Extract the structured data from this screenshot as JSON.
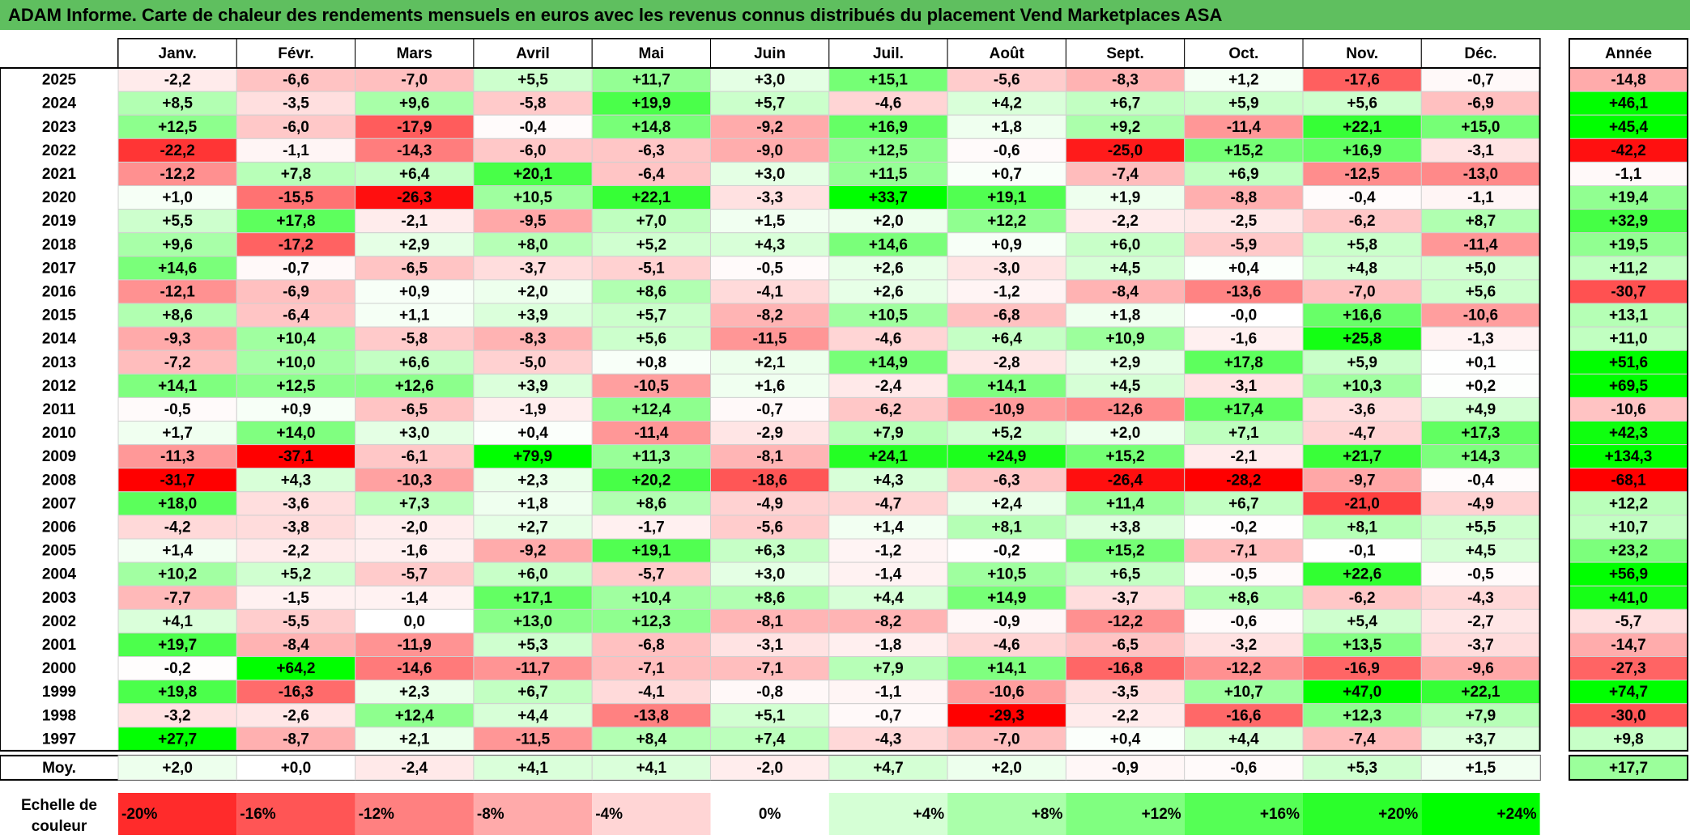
{
  "title": "ADAM Informe. Carte de chaleur des rendements mensuels en euros avec les revenus connus distribués du placement Vend Marketplaces ASA",
  "colors": {
    "title_bg": "#5fbf5f",
    "negative_max": "#ff0000",
    "neutral": "#ffffff",
    "positive_max": "#00ff00"
  },
  "chart_data": {
    "type": "heatmap",
    "columns": [
      "Janv.",
      "Févr.",
      "Mars",
      "Avril",
      "Mai",
      "Juin",
      "Juil.",
      "Août",
      "Sept.",
      "Oct.",
      "Nov.",
      "Déc."
    ],
    "annual_header": "Année",
    "rows": [
      {
        "year": "2025",
        "values": [
          "-2,2",
          "-6,6",
          "-7,0",
          "+5,5",
          "+11,7",
          "+3,0",
          "+15,1",
          "-5,6",
          "-8,3",
          "+1,2",
          "-17,6",
          "-0,7"
        ],
        "annual": "-14,8"
      },
      {
        "year": "2024",
        "values": [
          "+8,5",
          "-3,5",
          "+9,6",
          "-5,8",
          "+19,9",
          "+5,7",
          "-4,6",
          "+4,2",
          "+6,7",
          "+5,9",
          "+5,6",
          "-6,9"
        ],
        "annual": "+46,1"
      },
      {
        "year": "2023",
        "values": [
          "+12,5",
          "-6,0",
          "-17,9",
          "-0,4",
          "+14,8",
          "-9,2",
          "+16,9",
          "+1,8",
          "+9,2",
          "-11,4",
          "+22,1",
          "+15,0"
        ],
        "annual": "+45,4"
      },
      {
        "year": "2022",
        "values": [
          "-22,2",
          "-1,1",
          "-14,3",
          "-6,0",
          "-6,3",
          "-9,0",
          "+12,5",
          "-0,6",
          "-25,0",
          "+15,2",
          "+16,9",
          "-3,1"
        ],
        "annual": "-42,2"
      },
      {
        "year": "2021",
        "values": [
          "-12,2",
          "+7,8",
          "+6,4",
          "+20,1",
          "-6,4",
          "+3,0",
          "+11,5",
          "+0,7",
          "-7,4",
          "+6,9",
          "-12,5",
          "-13,0"
        ],
        "annual": "-1,1"
      },
      {
        "year": "2020",
        "values": [
          "+1,0",
          "-15,5",
          "-26,3",
          "+10,5",
          "+22,1",
          "-3,3",
          "+33,7",
          "+19,1",
          "+1,9",
          "-8,8",
          "-0,4",
          "-1,1"
        ],
        "annual": "+19,4"
      },
      {
        "year": "2019",
        "values": [
          "+5,5",
          "+17,8",
          "-2,1",
          "-9,5",
          "+7,0",
          "+1,5",
          "+2,0",
          "+12,2",
          "-2,2",
          "-2,5",
          "-6,2",
          "+8,7"
        ],
        "annual": "+32,9"
      },
      {
        "year": "2018",
        "values": [
          "+9,6",
          "-17,2",
          "+2,9",
          "+8,0",
          "+5,2",
          "+4,3",
          "+14,6",
          "+0,9",
          "+6,0",
          "-5,9",
          "+5,8",
          "-11,4"
        ],
        "annual": "+19,5"
      },
      {
        "year": "2017",
        "values": [
          "+14,6",
          "-0,7",
          "-6,5",
          "-3,7",
          "-5,1",
          "-0,5",
          "+2,6",
          "-3,0",
          "+4,5",
          "+0,4",
          "+4,8",
          "+5,0"
        ],
        "annual": "+11,2"
      },
      {
        "year": "2016",
        "values": [
          "-12,1",
          "-6,9",
          "+0,9",
          "+2,0",
          "+8,6",
          "-4,1",
          "+2,6",
          "-1,2",
          "-8,4",
          "-13,6",
          "-7,0",
          "+5,6"
        ],
        "annual": "-30,7"
      },
      {
        "year": "2015",
        "values": [
          "+8,6",
          "-6,4",
          "+1,1",
          "+3,9",
          "+5,7",
          "-8,2",
          "+10,5",
          "-6,8",
          "+1,8",
          "-0,0",
          "+16,6",
          "-10,6"
        ],
        "annual": "+13,1"
      },
      {
        "year": "2014",
        "values": [
          "-9,3",
          "+10,4",
          "-5,8",
          "-8,3",
          "+5,6",
          "-11,5",
          "-4,6",
          "+6,4",
          "+10,9",
          "-1,6",
          "+25,8",
          "-1,3"
        ],
        "annual": "+11,0"
      },
      {
        "year": "2013",
        "values": [
          "-7,2",
          "+10,0",
          "+6,6",
          "-5,0",
          "+0,8",
          "+2,1",
          "+14,9",
          "-2,8",
          "+2,9",
          "+17,8",
          "+5,9",
          "+0,1"
        ],
        "annual": "+51,6"
      },
      {
        "year": "2012",
        "values": [
          "+14,1",
          "+12,5",
          "+12,6",
          "+3,9",
          "-10,5",
          "+1,6",
          "-2,4",
          "+14,1",
          "+4,5",
          "-3,1",
          "+10,3",
          "+0,2"
        ],
        "annual": "+69,5"
      },
      {
        "year": "2011",
        "values": [
          "-0,5",
          "+0,9",
          "-6,5",
          "-1,9",
          "+12,4",
          "-0,7",
          "-6,2",
          "-10,9",
          "-12,6",
          "+17,4",
          "-3,6",
          "+4,9"
        ],
        "annual": "-10,6"
      },
      {
        "year": "2010",
        "values": [
          "+1,7",
          "+14,0",
          "+3,0",
          "+0,4",
          "-11,4",
          "-2,9",
          "+7,9",
          "+5,2",
          "+2,0",
          "+7,1",
          "-4,7",
          "+17,3"
        ],
        "annual": "+42,3"
      },
      {
        "year": "2009",
        "values": [
          "-11,3",
          "-37,1",
          "-6,1",
          "+79,9",
          "+11,3",
          "-8,1",
          "+24,1",
          "+24,9",
          "+15,2",
          "-2,1",
          "+21,7",
          "+14,3"
        ],
        "annual": "+134,3"
      },
      {
        "year": "2008",
        "values": [
          "-31,7",
          "+4,3",
          "-10,3",
          "+2,3",
          "+20,2",
          "-18,6",
          "+4,3",
          "-6,3",
          "-26,4",
          "-28,2",
          "-9,7",
          "-0,4"
        ],
        "annual": "-68,1"
      },
      {
        "year": "2007",
        "values": [
          "+18,0",
          "-3,6",
          "+7,3",
          "+1,8",
          "+8,6",
          "-4,9",
          "-4,7",
          "+2,4",
          "+11,4",
          "+6,7",
          "-21,0",
          "-4,9"
        ],
        "annual": "+12,2"
      },
      {
        "year": "2006",
        "values": [
          "-4,2",
          "-3,8",
          "-2,0",
          "+2,7",
          "-1,7",
          "-5,6",
          "+1,4",
          "+8,1",
          "+3,8",
          "-0,2",
          "+8,1",
          "+5,5"
        ],
        "annual": "+10,7"
      },
      {
        "year": "2005",
        "values": [
          "+1,4",
          "-2,2",
          "-1,6",
          "-9,2",
          "+19,1",
          "+6,3",
          "-1,2",
          "-0,2",
          "+15,2",
          "-7,1",
          "-0,1",
          "+4,5"
        ],
        "annual": "+23,2"
      },
      {
        "year": "2004",
        "values": [
          "+10,2",
          "+5,2",
          "-5,7",
          "+6,0",
          "-5,7",
          "+3,0",
          "-1,4",
          "+10,5",
          "+6,5",
          "-0,5",
          "+22,6",
          "-0,5"
        ],
        "annual": "+56,9"
      },
      {
        "year": "2003",
        "values": [
          "-7,7",
          "-1,5",
          "-1,4",
          "+17,1",
          "+10,4",
          "+8,6",
          "+4,4",
          "+14,9",
          "-3,7",
          "+8,6",
          "-6,2",
          "-4,3"
        ],
        "annual": "+41,0"
      },
      {
        "year": "2002",
        "values": [
          "+4,1",
          "-5,5",
          "0,0",
          "+13,0",
          "+12,3",
          "-8,1",
          "-8,2",
          "-0,9",
          "-12,2",
          "-0,6",
          "+5,4",
          "-2,7"
        ],
        "annual": "-5,7"
      },
      {
        "year": "2001",
        "values": [
          "+19,7",
          "-8,4",
          "-11,9",
          "+5,3",
          "-6,8",
          "-3,1",
          "-1,8",
          "-4,6",
          "-6,5",
          "-3,2",
          "+13,5",
          "-3,7"
        ],
        "annual": "-14,7"
      },
      {
        "year": "2000",
        "values": [
          "-0,2",
          "+64,2",
          "-14,6",
          "-11,7",
          "-7,1",
          "-7,1",
          "+7,9",
          "+14,1",
          "-16,8",
          "-12,2",
          "-16,9",
          "-9,6"
        ],
        "annual": "-27,3"
      },
      {
        "year": "1999",
        "values": [
          "+19,8",
          "-16,3",
          "+2,3",
          "+6,7",
          "-4,1",
          "-0,8",
          "-1,1",
          "-10,6",
          "-3,5",
          "+10,7",
          "+47,0",
          "+22,1"
        ],
        "annual": "+74,7"
      },
      {
        "year": "1998",
        "values": [
          "-3,2",
          "-2,6",
          "+12,4",
          "+4,4",
          "-13,8",
          "+5,1",
          "-0,7",
          "-29,3",
          "-2,2",
          "-16,6",
          "+12,3",
          "+7,9"
        ],
        "annual": "-30,0"
      },
      {
        "year": "1997",
        "values": [
          "+27,7",
          "-8,7",
          "+2,1",
          "-11,5",
          "+8,4",
          "+7,4",
          "-4,3",
          "-7,0",
          "+0,4",
          "+4,4",
          "-7,4",
          "+3,7"
        ],
        "annual": "+9,8"
      }
    ],
    "average": {
      "label": "Moy.",
      "values": [
        "+2,0",
        "+0,0",
        "-2,4",
        "+4,1",
        "+4,1",
        "-2,0",
        "+4,7",
        "+2,0",
        "-0,9",
        "-0,6",
        "+5,3",
        "+1,5"
      ],
      "annual": "+17,7"
    },
    "scale": {
      "label_line1": "Echelle de",
      "label_line2": "couleur",
      "items": [
        "-20%",
        "-16%",
        "-12%",
        "-8%",
        "-4%",
        "0%",
        "+4%",
        "+8%",
        "+12%",
        "+16%",
        "+20%",
        "+24%"
      ],
      "values": [
        -20,
        -16,
        -12,
        -8,
        -4,
        0,
        4,
        8,
        12,
        16,
        20,
        24
      ]
    }
  }
}
